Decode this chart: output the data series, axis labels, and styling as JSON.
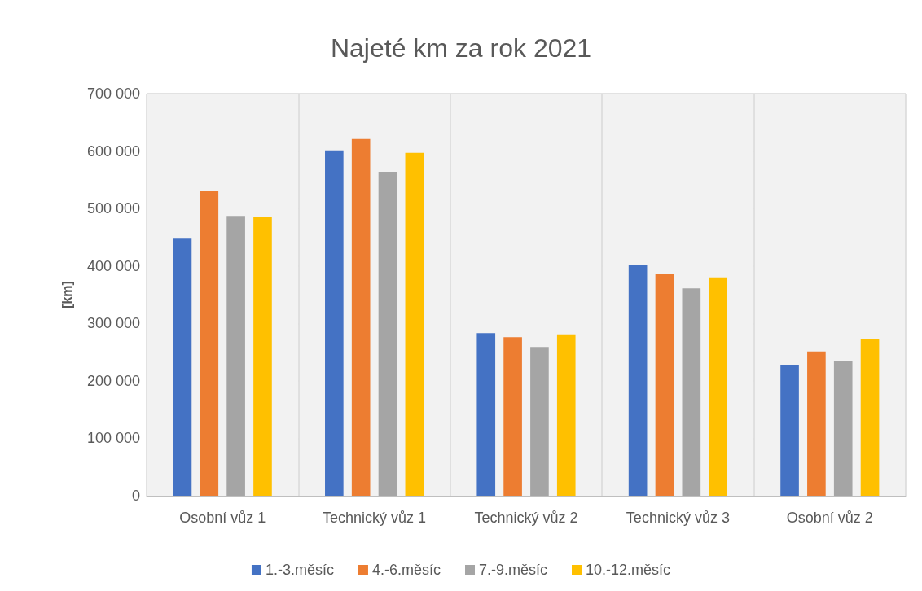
{
  "chart_data": {
    "type": "bar",
    "title": "Najeté km za rok 2021",
    "ylabel": "[km]",
    "categories": [
      "Osobní vůz 1",
      "Technický vůz 1",
      "Technický vůz 2",
      "Technický vůz 3",
      "Osobní vůz 2"
    ],
    "series": [
      {
        "name": "1.-3.měsíc",
        "color": "#4472c4",
        "values": [
          449000,
          601000,
          283000,
          402000,
          228000
        ]
      },
      {
        "name": "4.-6.měsíc",
        "color": "#ed7d31",
        "values": [
          530000,
          621000,
          276000,
          387000,
          251000
        ]
      },
      {
        "name": "7.-9.měsíc",
        "color": "#a5a5a5",
        "values": [
          487000,
          564000,
          259000,
          361000,
          234000
        ]
      },
      {
        "name": "10.-12.měsíc",
        "color": "#ffc000",
        "values": [
          485000,
          597000,
          281000,
          380000,
          272000
        ]
      }
    ],
    "ylim": [
      0,
      700000
    ],
    "yticks": [
      0,
      {
        "value": 100000,
        "label": "100 000"
      },
      {
        "value": 200000,
        "label": "200 000"
      },
      {
        "value": 300000,
        "label": "300 000"
      },
      {
        "value": 400000,
        "label": "400 000"
      },
      {
        "value": 500000,
        "label": "500 000"
      },
      {
        "value": 600000,
        "label": "600 000"
      },
      {
        "value": 700000,
        "label": "700 000"
      }
    ],
    "grid": true,
    "legend": "bottom"
  }
}
